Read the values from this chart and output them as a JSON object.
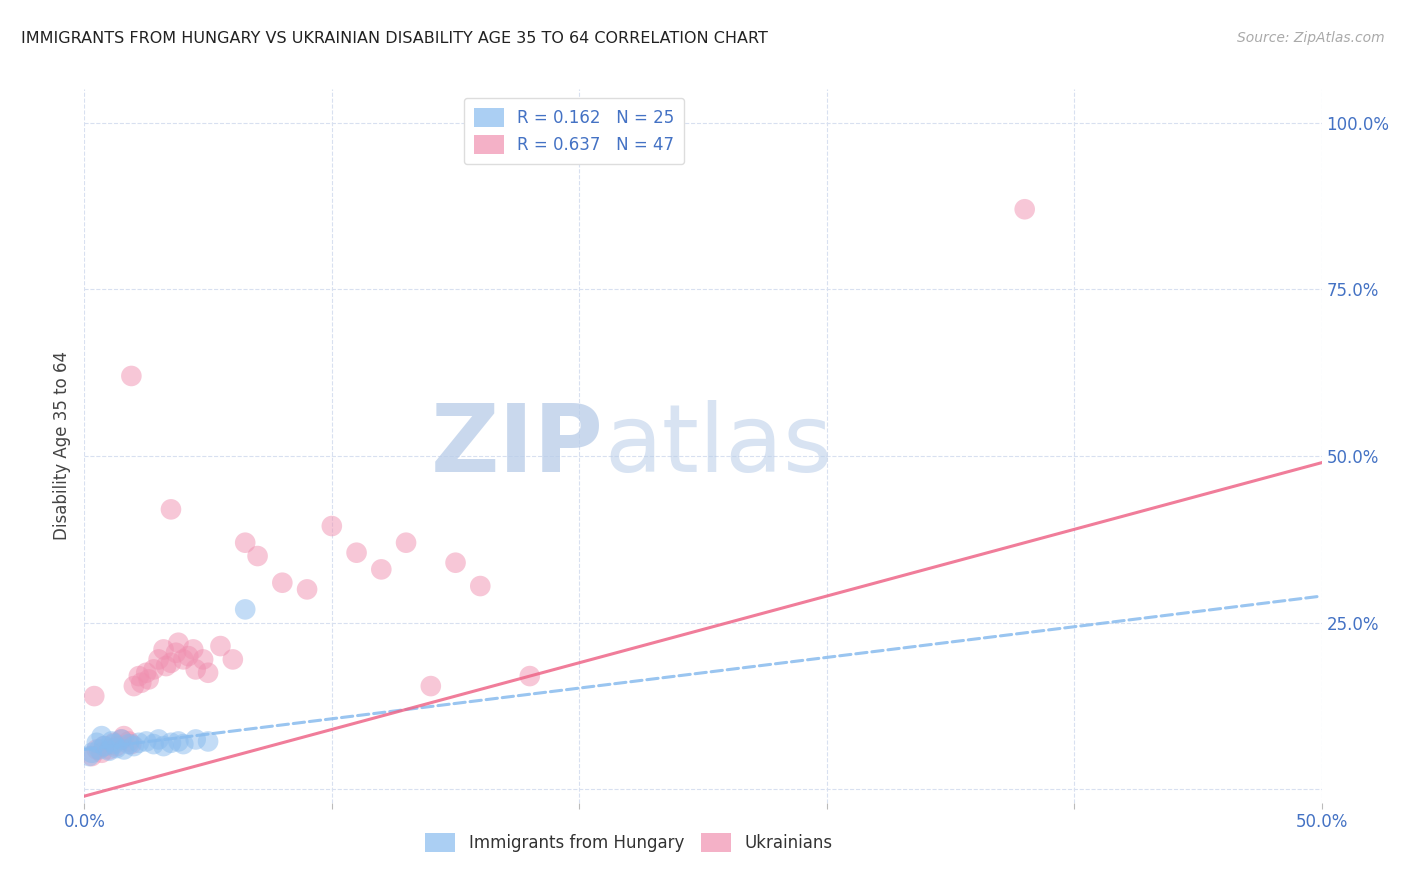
{
  "title": "IMMIGRANTS FROM HUNGARY VS UKRAINIAN DISABILITY AGE 35 TO 64 CORRELATION CHART",
  "source": "Source: ZipAtlas.com",
  "ylabel": "Disability Age 35 to 64",
  "ytick_labels": [
    "100.0%",
    "75.0%",
    "50.0%",
    "25.0%"
  ],
  "ytick_values": [
    1.0,
    0.75,
    0.5,
    0.25
  ],
  "xlim": [
    0.0,
    0.5
  ],
  "ylim": [
    -0.02,
    1.05
  ],
  "hungary_color": "#88bbee",
  "ukraine_color": "#f090b0",
  "hungary_line_color": "#88bbee",
  "ukraine_line_color": "#ee6688",
  "axis_color": "#4472c4",
  "grid_color": "#d8e0f0",
  "background_color": "#ffffff",
  "watermark_zip_color": "#ccddf5",
  "watermark_atlas_color": "#c0d8f0",
  "hungary_points": [
    [
      0.003,
      0.055
    ],
    [
      0.005,
      0.07
    ],
    [
      0.006,
      0.06
    ],
    [
      0.007,
      0.08
    ],
    [
      0.008,
      0.065
    ],
    [
      0.01,
      0.058
    ],
    [
      0.011,
      0.072
    ],
    [
      0.012,
      0.068
    ],
    [
      0.013,
      0.062
    ],
    [
      0.015,
      0.075
    ],
    [
      0.016,
      0.06
    ],
    [
      0.018,
      0.068
    ],
    [
      0.02,
      0.065
    ],
    [
      0.022,
      0.07
    ],
    [
      0.025,
      0.072
    ],
    [
      0.028,
      0.068
    ],
    [
      0.03,
      0.075
    ],
    [
      0.032,
      0.065
    ],
    [
      0.035,
      0.07
    ],
    [
      0.038,
      0.072
    ],
    [
      0.04,
      0.068
    ],
    [
      0.045,
      0.075
    ],
    [
      0.05,
      0.072
    ],
    [
      0.065,
      0.27
    ],
    [
      0.002,
      0.05
    ]
  ],
  "ukraine_points": [
    [
      0.003,
      0.05
    ],
    [
      0.005,
      0.06
    ],
    [
      0.007,
      0.055
    ],
    [
      0.008,
      0.065
    ],
    [
      0.01,
      0.06
    ],
    [
      0.012,
      0.07
    ],
    [
      0.013,
      0.065
    ],
    [
      0.015,
      0.075
    ],
    [
      0.016,
      0.08
    ],
    [
      0.018,
      0.072
    ],
    [
      0.019,
      0.068
    ],
    [
      0.02,
      0.155
    ],
    [
      0.022,
      0.17
    ],
    [
      0.023,
      0.16
    ],
    [
      0.025,
      0.175
    ],
    [
      0.026,
      0.165
    ],
    [
      0.028,
      0.18
    ],
    [
      0.03,
      0.195
    ],
    [
      0.032,
      0.21
    ],
    [
      0.033,
      0.185
    ],
    [
      0.035,
      0.19
    ],
    [
      0.037,
      0.205
    ],
    [
      0.038,
      0.22
    ],
    [
      0.04,
      0.195
    ],
    [
      0.042,
      0.2
    ],
    [
      0.044,
      0.21
    ],
    [
      0.045,
      0.18
    ],
    [
      0.048,
      0.195
    ],
    [
      0.05,
      0.175
    ],
    [
      0.055,
      0.215
    ],
    [
      0.06,
      0.195
    ],
    [
      0.065,
      0.37
    ],
    [
      0.07,
      0.35
    ],
    [
      0.08,
      0.31
    ],
    [
      0.09,
      0.3
    ],
    [
      0.1,
      0.395
    ],
    [
      0.11,
      0.355
    ],
    [
      0.12,
      0.33
    ],
    [
      0.13,
      0.37
    ],
    [
      0.14,
      0.155
    ],
    [
      0.15,
      0.34
    ],
    [
      0.16,
      0.305
    ],
    [
      0.18,
      0.17
    ],
    [
      0.019,
      0.62
    ],
    [
      0.035,
      0.42
    ],
    [
      0.38,
      0.87
    ],
    [
      0.004,
      0.14
    ]
  ],
  "hungary_line": [
    [
      0.0,
      0.06
    ],
    [
      0.5,
      0.29
    ]
  ],
  "ukraine_line": [
    [
      0.0,
      -0.01
    ],
    [
      0.5,
      0.49
    ]
  ],
  "legend1_label": "R = 0.162   N = 25",
  "legend2_label": "R = 0.637   N = 47"
}
